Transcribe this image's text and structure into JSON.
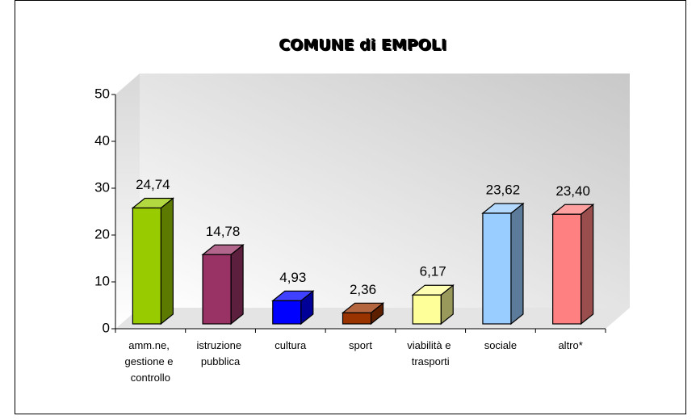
{
  "chart_data": {
    "type": "bar3d",
    "title": "COMUNE di EMPOLI",
    "categories": [
      "amm.ne, gestione e controllo",
      "istruzione pubblica",
      "cultura",
      "sport",
      "viabilità e trasporti",
      "sociale",
      "altro*"
    ],
    "values": [
      24.74,
      14.78,
      4.93,
      2.36,
      6.17,
      23.62,
      23.4
    ],
    "value_labels": [
      "24,74",
      "14,78",
      "4,93",
      "2,36",
      "6,17",
      "23,62",
      "23,40"
    ],
    "colors": [
      "#99cc00",
      "#993366",
      "#0000ff",
      "#993300",
      "#ffff99",
      "#99ccff",
      "#ff8080"
    ],
    "ylim": [
      0,
      50
    ],
    "yticks": [
      0,
      10,
      20,
      30,
      40,
      50
    ],
    "grid": false
  }
}
